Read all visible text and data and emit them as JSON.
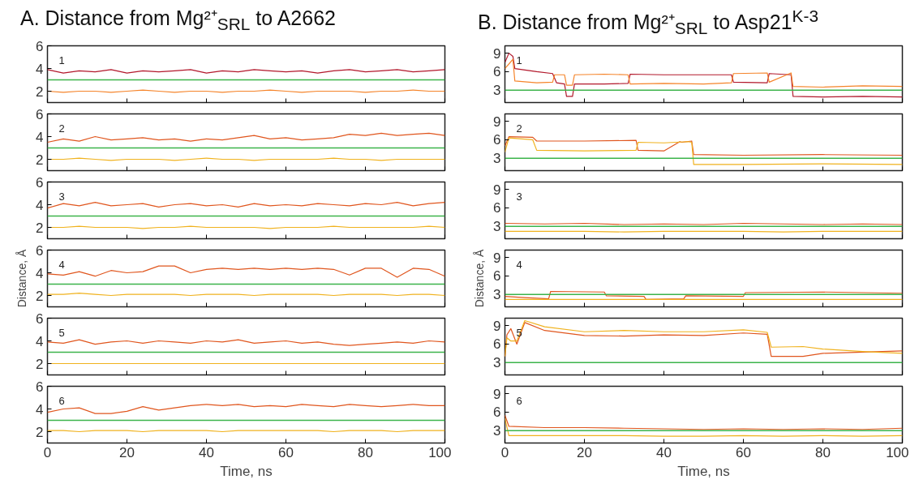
{
  "chart_data": [
    {
      "type": "line",
      "title": "A. Distance from Mg²⁺$_{SRL}$ to A2662",
      "x": [
        0,
        4,
        8,
        12,
        16,
        20,
        24,
        28,
        32,
        36,
        40,
        44,
        48,
        52,
        56,
        60,
        64,
        68,
        72,
        76,
        80,
        84,
        88,
        92,
        96,
        100
      ],
      "xlim": [
        0,
        100
      ],
      "xticks": [
        0,
        20,
        40,
        60,
        80,
        100
      ],
      "ylim": [
        1,
        6
      ],
      "yticks": [
        2,
        4,
        6
      ],
      "tick_labels": "y",
      "annotations": [
        "1"
      ],
      "ref_lines": [
        {
          "axis": "y",
          "value": 3,
          "color": "#3cb44b"
        }
      ],
      "series": [
        {
          "color": "#b2182b",
          "values": [
            3.9,
            3.6,
            3.8,
            3.7,
            3.9,
            3.6,
            3.8,
            3.7,
            3.8,
            3.9,
            3.6,
            3.8,
            3.7,
            3.9,
            3.8,
            3.7,
            3.8,
            3.6,
            3.8,
            3.9,
            3.7,
            3.8,
            3.9,
            3.7,
            3.8,
            3.9
          ]
        },
        {
          "color": "#f5842a",
          "values": [
            2.0,
            1.9,
            2.0,
            2.0,
            1.9,
            2.0,
            2.1,
            2.0,
            1.9,
            2.0,
            2.0,
            1.9,
            2.0,
            2.0,
            2.1,
            2.0,
            1.9,
            2.0,
            2.0,
            2.0,
            1.9,
            2.0,
            2.0,
            2.1,
            2.0,
            2.0
          ]
        }
      ]
    },
    {
      "type": "line",
      "x": [
        0,
        4,
        8,
        12,
        16,
        20,
        24,
        28,
        32,
        36,
        40,
        44,
        48,
        52,
        56,
        60,
        64,
        68,
        72,
        76,
        80,
        84,
        88,
        92,
        96,
        100
      ],
      "xlim": [
        0,
        100
      ],
      "xticks": [
        0,
        20,
        40,
        60,
        80,
        100
      ],
      "ylim": [
        1,
        6
      ],
      "yticks": [
        2,
        4,
        6
      ],
      "tick_labels": "y",
      "annotations": [
        "2"
      ],
      "ref_lines": [
        {
          "axis": "y",
          "value": 3,
          "color": "#3cb44b"
        }
      ],
      "series": [
        {
          "color": "#e0561e",
          "values": [
            3.5,
            3.8,
            3.6,
            4.0,
            3.7,
            3.8,
            3.9,
            3.7,
            3.8,
            3.6,
            3.8,
            3.7,
            3.9,
            4.1,
            3.8,
            3.9,
            3.7,
            3.8,
            3.9,
            4.2,
            4.1,
            4.3,
            4.1,
            4.2,
            4.3,
            4.1
          ]
        },
        {
          "color": "#f0b21e",
          "values": [
            2.0,
            2.0,
            2.1,
            2.0,
            1.9,
            2.0,
            2.0,
            2.0,
            1.9,
            2.0,
            2.1,
            2.0,
            2.0,
            1.9,
            2.0,
            2.0,
            2.0,
            2.0,
            2.1,
            2.0,
            2.0,
            1.9,
            2.0,
            2.0,
            2.0,
            2.0
          ]
        }
      ]
    },
    {
      "type": "line",
      "x": [
        0,
        4,
        8,
        12,
        16,
        20,
        24,
        28,
        32,
        36,
        40,
        44,
        48,
        52,
        56,
        60,
        64,
        68,
        72,
        76,
        80,
        84,
        88,
        92,
        96,
        100
      ],
      "xlim": [
        0,
        100
      ],
      "xticks": [
        0,
        20,
        40,
        60,
        80,
        100
      ],
      "ylim": [
        1,
        6
      ],
      "yticks": [
        2,
        4,
        6
      ],
      "tick_labels": "y",
      "annotations": [
        "3"
      ],
      "ref_lines": [
        {
          "axis": "y",
          "value": 3,
          "color": "#3cb44b"
        }
      ],
      "series": [
        {
          "color": "#e0561e",
          "values": [
            3.7,
            4.1,
            3.9,
            4.2,
            3.9,
            4.0,
            4.1,
            3.8,
            4.0,
            4.1,
            3.9,
            4.0,
            3.8,
            4.1,
            3.9,
            4.0,
            3.9,
            4.1,
            4.0,
            3.9,
            4.1,
            4.0,
            4.2,
            3.9,
            4.1,
            4.2
          ]
        },
        {
          "color": "#f0b21e",
          "values": [
            2.0,
            2.0,
            2.1,
            2.0,
            2.0,
            2.0,
            1.9,
            2.0,
            2.0,
            2.1,
            2.0,
            2.0,
            2.0,
            2.0,
            1.9,
            2.0,
            2.0,
            2.0,
            2.1,
            2.0,
            2.0,
            2.0,
            2.0,
            2.0,
            2.1,
            2.0
          ]
        }
      ]
    },
    {
      "type": "line",
      "ylabel": "Distance, Å",
      "x": [
        0,
        4,
        8,
        12,
        16,
        20,
        24,
        28,
        32,
        36,
        40,
        44,
        48,
        52,
        56,
        60,
        64,
        68,
        72,
        76,
        80,
        84,
        88,
        92,
        96,
        100
      ],
      "xlim": [
        0,
        100
      ],
      "xticks": [
        0,
        20,
        40,
        60,
        80,
        100
      ],
      "ylim": [
        1,
        6
      ],
      "yticks": [
        2,
        4,
        6
      ],
      "tick_labels": "y",
      "annotations": [
        "4"
      ],
      "ref_lines": [
        {
          "axis": "y",
          "value": 3,
          "color": "#3cb44b"
        }
      ],
      "series": [
        {
          "color": "#e0561e",
          "values": [
            3.9,
            3.8,
            4.1,
            3.7,
            4.2,
            4.0,
            4.1,
            4.6,
            4.6,
            4.0,
            4.3,
            4.4,
            4.3,
            4.4,
            4.3,
            4.4,
            4.3,
            4.4,
            4.3,
            3.8,
            4.4,
            4.4,
            3.6,
            4.4,
            4.3,
            3.7
          ]
        },
        {
          "color": "#f0b21e",
          "values": [
            2.1,
            2.1,
            2.2,
            2.1,
            2.0,
            2.1,
            2.1,
            2.1,
            2.1,
            2.0,
            2.1,
            2.1,
            2.1,
            2.0,
            2.1,
            2.1,
            2.1,
            2.1,
            2.0,
            2.1,
            2.1,
            2.1,
            2.0,
            2.1,
            2.1,
            2.0
          ]
        }
      ]
    },
    {
      "type": "line",
      "x": [
        0,
        4,
        8,
        12,
        16,
        20,
        24,
        28,
        32,
        36,
        40,
        44,
        48,
        52,
        56,
        60,
        64,
        68,
        72,
        76,
        80,
        84,
        88,
        92,
        96,
        100
      ],
      "xlim": [
        0,
        100
      ],
      "xticks": [
        0,
        20,
        40,
        60,
        80,
        100
      ],
      "ylim": [
        1,
        6
      ],
      "yticks": [
        2,
        4,
        6
      ],
      "tick_labels": "y",
      "annotations": [
        "5"
      ],
      "ref_lines": [
        {
          "axis": "y",
          "value": 3,
          "color": "#3cb44b"
        }
      ],
      "series": [
        {
          "color": "#e0561e",
          "values": [
            3.9,
            3.8,
            4.1,
            3.7,
            3.9,
            4.0,
            3.8,
            4.0,
            3.9,
            3.8,
            4.0,
            3.9,
            4.1,
            3.8,
            3.9,
            4.0,
            3.8,
            3.9,
            3.7,
            3.6,
            3.7,
            3.8,
            3.9,
            3.8,
            4.0,
            3.9
          ]
        },
        {
          "color": "#f0b21e",
          "values": [
            2.0,
            2.0,
            2.0,
            2.0,
            2.0,
            2.0,
            2.0,
            2.0,
            2.0,
            2.0,
            2.0,
            2.0,
            2.0,
            2.0,
            2.0,
            2.0,
            2.0,
            2.0,
            2.0,
            2.0,
            2.0,
            2.0,
            2.0,
            2.0,
            2.0,
            2.0
          ]
        }
      ]
    },
    {
      "type": "line",
      "xlabel": "Time, ns",
      "x": [
        0,
        4,
        8,
        12,
        16,
        20,
        24,
        28,
        32,
        36,
        40,
        44,
        48,
        52,
        56,
        60,
        64,
        68,
        72,
        76,
        80,
        84,
        88,
        92,
        96,
        100
      ],
      "xlim": [
        0,
        100
      ],
      "xticks": [
        0,
        20,
        40,
        60,
        80,
        100
      ],
      "ylim": [
        1,
        6
      ],
      "yticks": [
        2,
        4,
        6
      ],
      "annotations": [
        "6"
      ],
      "ref_lines": [
        {
          "axis": "y",
          "value": 3,
          "color": "#3cb44b"
        }
      ],
      "series": [
        {
          "color": "#e0561e",
          "values": [
            3.7,
            4.0,
            4.1,
            3.6,
            3.6,
            3.8,
            4.2,
            3.9,
            4.1,
            4.3,
            4.4,
            4.3,
            4.4,
            4.2,
            4.3,
            4.2,
            4.4,
            4.3,
            4.2,
            4.4,
            4.3,
            4.2,
            4.3,
            4.4,
            4.3,
            4.3
          ]
        },
        {
          "color": "#f0b21e",
          "values": [
            2.1,
            2.1,
            2.0,
            2.1,
            2.1,
            2.1,
            2.0,
            2.1,
            2.1,
            2.1,
            2.1,
            2.0,
            2.1,
            2.1,
            2.1,
            2.1,
            2.1,
            2.1,
            2.0,
            2.1,
            2.1,
            2.1,
            2.0,
            2.1,
            2.1,
            2.1
          ]
        }
      ]
    },
    {
      "type": "line",
      "title": "B. Distance from Mg²⁺$_{SRL}$ to Asp21$^{K-3}$",
      "xlim": [
        0,
        100
      ],
      "xticks": [
        0,
        20,
        40,
        60,
        80,
        100
      ],
      "ylim": [
        1,
        10.2
      ],
      "yticks": [
        3,
        6,
        9
      ],
      "tick_labels": "y",
      "annotations": [
        "1"
      ],
      "ref_lines": [
        {
          "axis": "y",
          "value": 3,
          "color": "#3cb44b"
        }
      ],
      "series": [
        {
          "color": "#b2182b",
          "x": [
            0,
            1,
            2,
            2.5,
            8,
            12,
            13,
            15,
            15.5,
            17,
            17.5,
            25,
            31,
            31.5,
            40,
            50,
            57,
            57.5,
            66,
            66.5,
            72,
            72.5,
            80,
            90,
            100
          ],
          "values": [
            7.5,
            9,
            8.5,
            6.5,
            6.0,
            5.7,
            4.2,
            4.0,
            2.0,
            2.0,
            4.0,
            4.0,
            4.1,
            5.6,
            5.5,
            5.5,
            5.5,
            4.3,
            4.2,
            5.7,
            5.5,
            2.0,
            1.9,
            2.0,
            1.9
          ]
        },
        {
          "color": "#f5842a",
          "x": [
            0,
            2,
            2.5,
            8,
            12,
            12.5,
            15,
            15.5,
            17,
            17.5,
            25,
            31,
            31.5,
            40,
            50,
            57,
            57.5,
            66,
            66.5,
            72,
            72.5,
            80,
            90,
            100
          ],
          "values": [
            6.5,
            8,
            4.5,
            4.2,
            4.3,
            5.5,
            5.5,
            3.8,
            3.8,
            5.5,
            5.6,
            5.5,
            4.0,
            4.1,
            4.0,
            4.2,
            5.7,
            5.8,
            4.3,
            5.8,
            3.6,
            3.5,
            3.7,
            3.6
          ]
        }
      ]
    },
    {
      "type": "line",
      "xlim": [
        0,
        100
      ],
      "xticks": [
        0,
        20,
        40,
        60,
        80,
        100
      ],
      "ylim": [
        1,
        10.2
      ],
      "yticks": [
        3,
        6,
        9
      ],
      "tick_labels": "y",
      "annotations": [
        "2"
      ],
      "ref_lines": [
        {
          "axis": "y",
          "value": 3,
          "color": "#3cb44b"
        }
      ],
      "series": [
        {
          "color": "#e0561e",
          "x": [
            0,
            1,
            7,
            8,
            20,
            33,
            33.5,
            40,
            44,
            44.5,
            47,
            47.5,
            60,
            80,
            100
          ],
          "values": [
            5,
            6.5,
            6.4,
            5.8,
            5.8,
            5.9,
            4.3,
            4.2,
            5.7,
            5.6,
            5.8,
            3.6,
            3.5,
            3.6,
            3.5
          ]
        },
        {
          "color": "#f0b21e",
          "x": [
            0,
            1,
            7,
            8,
            20,
            33,
            33.5,
            40,
            46,
            47,
            47.5,
            60,
            80,
            100
          ],
          "values": [
            4,
            6.3,
            6.0,
            4.3,
            4.2,
            4.3,
            5.6,
            5.5,
            5.7,
            5.6,
            2.0,
            2.0,
            2.1,
            2.0
          ]
        }
      ]
    },
    {
      "type": "line",
      "x": [
        0,
        10,
        20,
        30,
        40,
        50,
        60,
        70,
        80,
        90,
        100
      ],
      "xlim": [
        0,
        100
      ],
      "xticks": [
        0,
        20,
        40,
        60,
        80,
        100
      ],
      "ylim": [
        1,
        10.2
      ],
      "yticks": [
        3,
        6,
        9
      ],
      "tick_labels": "y",
      "annotations": [
        "3"
      ],
      "ref_lines": [
        {
          "axis": "y",
          "value": 3,
          "color": "#3cb44b"
        }
      ],
      "series": [
        {
          "color": "#e0561e",
          "values": [
            3.5,
            3.4,
            3.5,
            3.3,
            3.4,
            3.3,
            3.5,
            3.4,
            3.3,
            3.4,
            3.3
          ]
        },
        {
          "color": "#f0b21e",
          "values": [
            2.2,
            2.2,
            2.2,
            2.1,
            2.2,
            2.2,
            2.2,
            2.1,
            2.2,
            2.2,
            2.2
          ]
        }
      ]
    },
    {
      "type": "line",
      "ylabel": "Distance, Å",
      "xlim": [
        0,
        100
      ],
      "xticks": [
        0,
        20,
        40,
        60,
        80,
        100
      ],
      "ylim": [
        1,
        10.2
      ],
      "yticks": [
        3,
        6,
        9
      ],
      "tick_labels": "y",
      "annotations": [
        "4"
      ],
      "ref_lines": [
        {
          "axis": "y",
          "value": 3,
          "color": "#3cb44b"
        }
      ],
      "series": [
        {
          "color": "#e0561e",
          "x": [
            0,
            5,
            11,
            11.5,
            25,
            25.5,
            35,
            35.5,
            45,
            45.5,
            60,
            60.5,
            80,
            100
          ],
          "values": [
            2.7,
            2.5,
            2.3,
            3.5,
            3.4,
            2.8,
            2.7,
            2.2,
            2.3,
            2.8,
            2.7,
            3.3,
            3.4,
            3.2
          ]
        },
        {
          "color": "#f0b21e",
          "x": [
            0,
            20,
            40,
            60,
            80,
            100
          ],
          "values": [
            2.2,
            2.2,
            2.2,
            2.2,
            2.2,
            2.2
          ]
        }
      ]
    },
    {
      "type": "line",
      "xlim": [
        0,
        100
      ],
      "xticks": [
        0,
        20,
        40,
        60,
        80,
        100
      ],
      "ylim": [
        1,
        10.2
      ],
      "yticks": [
        3,
        6,
        9
      ],
      "tick_labels": "y",
      "annotations": [
        "5"
      ],
      "ref_lines": [
        {
          "axis": "y",
          "value": 3,
          "color": "#3cb44b"
        }
      ],
      "series": [
        {
          "color": "#e0561e",
          "x": [
            0,
            0.5,
            1.5,
            3,
            5,
            10,
            20,
            30,
            40,
            50,
            60,
            66,
            67,
            75,
            80,
            90,
            100
          ],
          "values": [
            4,
            7.5,
            8.5,
            6.0,
            9.5,
            8.2,
            7.4,
            7.3,
            7.5,
            7.4,
            7.8,
            7.6,
            4.0,
            4.0,
            4.5,
            4.7,
            4.9
          ]
        },
        {
          "color": "#f0b21e",
          "x": [
            0,
            0.5,
            1.5,
            3,
            5,
            10,
            20,
            30,
            40,
            50,
            60,
            66,
            67,
            75,
            80,
            90,
            100
          ],
          "values": [
            4,
            7,
            6.5,
            6.5,
            9.8,
            8.8,
            8.0,
            8.2,
            8.0,
            8.0,
            8.3,
            7.9,
            5.5,
            5.6,
            5.2,
            4.8,
            4.5
          ]
        }
      ]
    },
    {
      "type": "line",
      "xlabel": "Time, ns",
      "x": [
        0,
        1,
        10,
        20,
        30,
        40,
        50,
        60,
        70,
        80,
        90,
        100
      ],
      "xlim": [
        0,
        100
      ],
      "xticks": [
        0,
        20,
        40,
        60,
        80,
        100
      ],
      "ylim": [
        1,
        10.2
      ],
      "yticks": [
        3,
        6,
        9
      ],
      "annotations": [
        "6"
      ],
      "ref_lines": [
        {
          "axis": "y",
          "value": 3,
          "color": "#3cb44b"
        }
      ],
      "series": [
        {
          "color": "#e0561e",
          "values": [
            5.5,
            3.7,
            3.5,
            3.5,
            3.4,
            3.3,
            3.2,
            3.3,
            3.2,
            3.3,
            3.2,
            3.4
          ]
        },
        {
          "color": "#f0b21e",
          "values": [
            5.0,
            2.2,
            2.2,
            2.2,
            2.2,
            2.1,
            2.1,
            2.2,
            2.1,
            2.2,
            2.1,
            2.2
          ]
        }
      ]
    }
  ]
}
